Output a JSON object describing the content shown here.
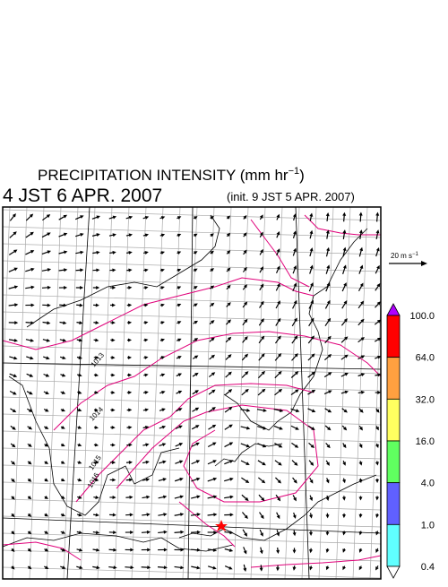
{
  "header": {
    "title_main": "PRECIPITATION INTENSITY (mm hr",
    "title_exponent": "−1",
    "title_close": ")",
    "valid_time": "4 JST 6 APR. 2007",
    "init_time": "(init. 9 JST 5 APR. 2007)"
  },
  "reference_vector": {
    "label": "20 m s",
    "exponent": "−1"
  },
  "contour_labels": [
    "1013",
    "1014",
    "1015",
    "1016"
  ],
  "colorbar": {
    "labels": [
      "100.0",
      "64.0",
      "32.0",
      "16.0",
      "4.0",
      "1.0",
      "0.4"
    ],
    "colors": [
      "#ff0000",
      "#ffa040",
      "#ffff60",
      "#60ff60",
      "#6060ff",
      "#60ffff"
    ],
    "over_color": "#b000ff",
    "under_color": "#ffffff"
  }
}
